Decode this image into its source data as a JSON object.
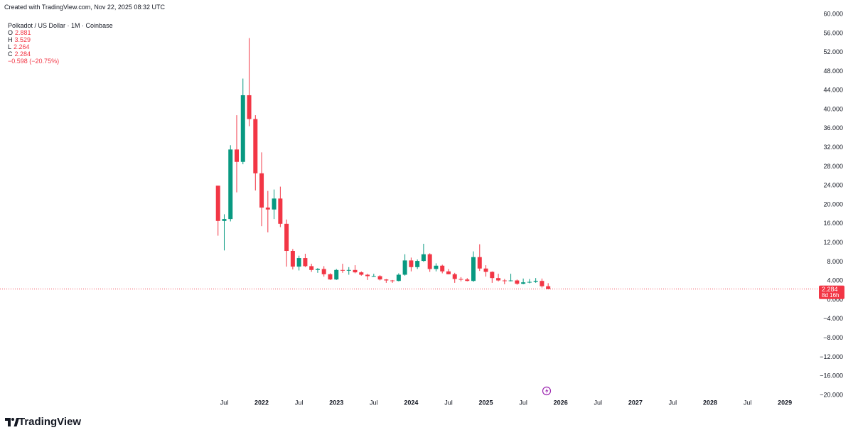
{
  "created_note": "Created with TradingView.com, Nov 22, 2025 08:32 UTC",
  "branding": "TradingView",
  "chart_data": {
    "type": "candlestick",
    "title": "Polkadot / US Dollar · 1M · Coinbase",
    "ohlc_labels": {
      "open": "O",
      "high": "H",
      "low": "L",
      "close": "C"
    },
    "change_label": "−0.598 (−20.75%)",
    "countdown": "8d 16h",
    "up_color": "#089981",
    "down_color": "#f23645",
    "x": [
      "2021-06",
      "2021-07",
      "2021-08",
      "2021-09",
      "2021-10",
      "2021-11",
      "2021-12",
      "2022-01",
      "2022-02",
      "2022-03",
      "2022-04",
      "2022-05",
      "2022-06",
      "2022-07",
      "2022-08",
      "2022-09",
      "2022-10",
      "2022-11",
      "2022-12",
      "2023-01",
      "2023-02",
      "2023-03",
      "2023-04",
      "2023-05",
      "2023-06",
      "2023-07",
      "2023-08",
      "2023-09",
      "2023-10",
      "2023-11",
      "2023-12",
      "2024-01",
      "2024-02",
      "2024-03",
      "2024-04",
      "2024-05",
      "2024-06",
      "2024-07",
      "2024-08",
      "2024-09",
      "2024-10",
      "2024-11",
      "2024-12",
      "2025-01",
      "2025-02",
      "2025-03",
      "2025-04",
      "2025-05",
      "2025-06",
      "2025-07",
      "2025-08",
      "2025-09",
      "2025-10",
      "2025-11"
    ],
    "open": [
      24.0,
      16.6,
      17.0,
      31.6,
      29.0,
      43.0,
      38.0,
      26.6,
      19.4,
      19.0,
      21.3,
      16.0,
      10.3,
      7.0,
      8.8,
      7.1,
      6.3,
      6.5,
      5.4,
      4.3,
      6.3,
      6.2,
      6.3,
      5.8,
      5.3,
      5.0,
      5.0,
      4.3,
      4.1,
      4.0,
      5.3,
      8.3,
      6.9,
      8.2,
      9.6,
      6.5,
      7.2,
      6.0,
      5.4,
      4.4,
      4.3,
      4.0,
      9.0,
      6.6,
      5.9,
      4.6,
      4.1,
      4.0,
      4.1,
      3.4,
      3.7,
      3.8,
      4.0,
      2.881
    ],
    "high": [
      24.0,
      18.0,
      32.5,
      38.8,
      46.5,
      55.0,
      38.8,
      31.0,
      22.9,
      23.2,
      23.8,
      16.9,
      10.7,
      9.3,
      9.7,
      7.6,
      6.7,
      7.1,
      5.6,
      6.5,
      7.6,
      6.9,
      7.3,
      6.0,
      5.5,
      5.5,
      5.2,
      4.4,
      4.2,
      5.6,
      9.6,
      8.9,
      8.5,
      11.8,
      9.8,
      7.7,
      7.4,
      6.5,
      5.7,
      4.8,
      4.6,
      10.2,
      11.7,
      7.3,
      6.0,
      5.5,
      4.4,
      5.5,
      4.3,
      4.5,
      4.4,
      4.6,
      4.5,
      3.529
    ],
    "low": [
      13.5,
      10.4,
      16.5,
      22.6,
      28.5,
      36.5,
      23.0,
      15.5,
      14.2,
      17.0,
      15.3,
      7.0,
      6.4,
      6.2,
      6.9,
      5.9,
      5.7,
      4.9,
      4.2,
      4.2,
      5.7,
      5.3,
      5.6,
      5.1,
      4.2,
      4.9,
      4.1,
      3.6,
      3.6,
      3.9,
      5.1,
      6.0,
      6.5,
      8.0,
      5.9,
      6.0,
      5.6,
      5.4,
      3.6,
      3.9,
      3.9,
      3.8,
      6.1,
      4.9,
      3.6,
      3.9,
      3.3,
      3.9,
      3.2,
      3.3,
      3.5,
      3.6,
      2.6,
      2.264
    ],
    "close": [
      16.6,
      17.0,
      31.6,
      29.0,
      43.0,
      38.0,
      26.6,
      19.4,
      19.0,
      21.3,
      16.0,
      10.3,
      7.0,
      8.8,
      7.1,
      6.3,
      6.5,
      5.4,
      4.3,
      6.3,
      6.2,
      6.3,
      5.8,
      5.3,
      5.0,
      5.0,
      4.3,
      4.1,
      4.0,
      5.3,
      8.3,
      6.9,
      8.2,
      9.6,
      6.5,
      7.2,
      6.0,
      5.4,
      4.4,
      4.3,
      4.0,
      9.0,
      6.6,
      5.9,
      4.6,
      4.1,
      4.0,
      4.1,
      3.4,
      3.7,
      3.8,
      4.0,
      2.881,
      2.284
    ],
    "xlim": [
      "2018-07",
      "2029-06"
    ],
    "xticks": [
      {
        "value": "2021-07",
        "label": "Jul"
      },
      {
        "value": "2022-01",
        "label": "2022"
      },
      {
        "value": "2022-07",
        "label": "Jul"
      },
      {
        "value": "2023-01",
        "label": "2023"
      },
      {
        "value": "2023-07",
        "label": "Jul"
      },
      {
        "value": "2024-01",
        "label": "2024"
      },
      {
        "value": "2024-07",
        "label": "Jul"
      },
      {
        "value": "2025-01",
        "label": "2025"
      },
      {
        "value": "2025-07",
        "label": "Jul"
      },
      {
        "value": "2026-01",
        "label": "2026"
      },
      {
        "value": "2026-07",
        "label": "Jul"
      },
      {
        "value": "2027-01",
        "label": "2027"
      },
      {
        "value": "2027-07",
        "label": "Jul"
      },
      {
        "value": "2028-01",
        "label": "2028"
      },
      {
        "value": "2028-07",
        "label": "Jul"
      },
      {
        "value": "2029-01",
        "label": "2029"
      },
      {
        "value": "2029-07",
        "label": "Jul"
      }
    ],
    "ylim": [
      -20.6,
      63
    ],
    "yticks": [
      {
        "value": 60,
        "label": "60.000"
      },
      {
        "value": 56,
        "label": "56.000"
      },
      {
        "value": 52,
        "label": "52.000"
      },
      {
        "value": 48,
        "label": "48.000"
      },
      {
        "value": 44,
        "label": "44.000"
      },
      {
        "value": 40,
        "label": "40.000"
      },
      {
        "value": 36,
        "label": "36.000"
      },
      {
        "value": 32,
        "label": "32.000"
      },
      {
        "value": 28,
        "label": "28.000"
      },
      {
        "value": 24,
        "label": "24.000"
      },
      {
        "value": 20,
        "label": "20.000"
      },
      {
        "value": 16,
        "label": "16.000"
      },
      {
        "value": 12,
        "label": "12.000"
      },
      {
        "value": 8,
        "label": "8.000"
      },
      {
        "value": 4,
        "label": "4.000"
      },
      {
        "value": 0,
        "label": "0.000"
      },
      {
        "value": -4,
        "label": "−4.000"
      },
      {
        "value": -8,
        "label": "−8.000"
      },
      {
        "value": -12,
        "label": "−12.000"
      },
      {
        "value": -16,
        "label": "−16.000"
      },
      {
        "value": -20,
        "label": "−20.000"
      }
    ]
  }
}
